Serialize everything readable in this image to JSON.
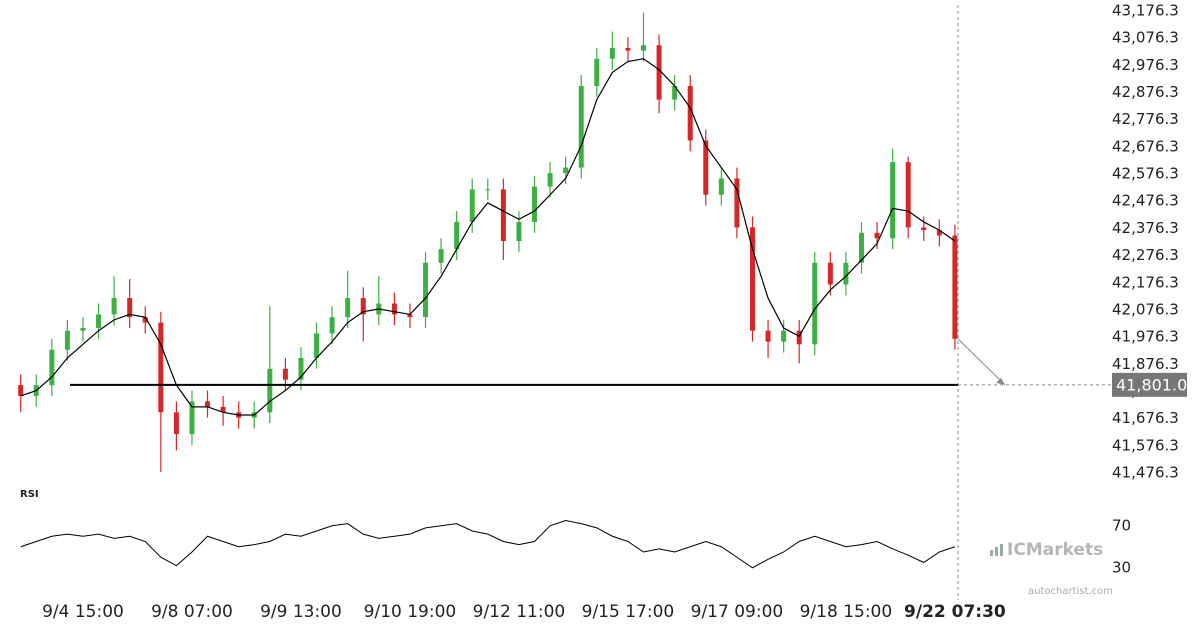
{
  "chart_data": {
    "type": "candlestick",
    "categories": [
      null,
      null,
      null,
      null,
      "9/4 15:00",
      null,
      null,
      null,
      null,
      null,
      null,
      "9/8 07:00",
      null,
      null,
      null,
      null,
      null,
      null,
      "9/9 13:00",
      null,
      null,
      null,
      null,
      null,
      null,
      "9/10 19:00",
      null,
      null,
      null,
      null,
      null,
      null,
      "9/12 11:00",
      null,
      null,
      null,
      null,
      null,
      null,
      "9/15 17:00",
      null,
      null,
      null,
      null,
      null,
      null,
      "9/17 09:00",
      null,
      null,
      null,
      null,
      null,
      null,
      "9/18 15:00",
      null,
      null,
      null,
      null,
      null,
      null,
      "9/22 07:30"
    ],
    "open": [
      41800,
      41760,
      41800,
      41930,
      42000,
      42010,
      42060,
      42120,
      42050,
      42030,
      41700,
      41620,
      41740,
      41720,
      41700,
      41680,
      41700,
      41860,
      41820,
      41900,
      41990,
      42050,
      42120,
      42060,
      42100,
      42060,
      42050,
      42250,
      42300,
      42400,
      42520,
      42520,
      42330,
      42400,
      42530,
      42580,
      42600,
      42900,
      43000,
      43040,
      43030,
      43050,
      42850,
      42900,
      42700,
      42500,
      42560,
      42380,
      42000,
      41960,
      42000,
      41950,
      42250,
      42170,
      42250,
      42360,
      42340,
      42620,
      42380,
      42370,
      42350
    ],
    "high": [
      41840,
      41840,
      41970,
      42040,
      42050,
      42100,
      42200,
      42190,
      42090,
      42070,
      41740,
      41780,
      41780,
      41760,
      41740,
      41740,
      42090,
      41900,
      41940,
      42030,
      42090,
      42220,
      42160,
      42200,
      42140,
      42100,
      42290,
      42340,
      42440,
      42560,
      42560,
      42560,
      42440,
      42570,
      42620,
      42640,
      42940,
      43040,
      43100,
      43080,
      43170,
      43090,
      42940,
      42940,
      42740,
      42600,
      42600,
      42420,
      42040,
      42040,
      42040,
      42290,
      42290,
      42290,
      42400,
      42400,
      42670,
      42640,
      42420,
      42410,
      42390
    ],
    "low": [
      41700,
      41720,
      41760,
      41890,
      41960,
      41970,
      42020,
      42010,
      41990,
      41480,
      41560,
      41580,
      41680,
      41650,
      41640,
      41640,
      41660,
      41780,
      41780,
      41860,
      41950,
      42010,
      41960,
      42020,
      42020,
      42010,
      42010,
      42210,
      42260,
      42360,
      42480,
      42260,
      42290,
      42360,
      42490,
      42540,
      42560,
      42860,
      42960,
      42990,
      42990,
      42800,
      42810,
      42660,
      42460,
      42460,
      42340,
      41960,
      41900,
      41920,
      41880,
      41910,
      42130,
      42130,
      42210,
      42300,
      42300,
      42340,
      42330,
      42310,
      41930
    ],
    "close": [
      41760,
      41800,
      41930,
      42000,
      42010,
      42060,
      42120,
      42050,
      42030,
      41700,
      41620,
      41740,
      41720,
      41700,
      41680,
      41700,
      41860,
      41820,
      41900,
      41990,
      42050,
      42120,
      42060,
      42100,
      42060,
      42050,
      42250,
      42300,
      42400,
      42520,
      42520,
      42330,
      42400,
      42530,
      42580,
      42600,
      42900,
      43000,
      43040,
      43030,
      43050,
      42850,
      42900,
      42700,
      42500,
      42560,
      42380,
      42000,
      41960,
      42000,
      41950,
      42250,
      42170,
      42250,
      42360,
      42340,
      42620,
      42380,
      42370,
      42350,
      41970
    ],
    "up_color": "#3cb043",
    "down_color": "#d62728",
    "ma": {
      "color": "#000000",
      "values": [
        41760,
        41780,
        41830,
        41900,
        41950,
        42000,
        42040,
        42060,
        42050,
        41950,
        41800,
        41720,
        41720,
        41700,
        41690,
        41690,
        41740,
        41780,
        41830,
        41900,
        41960,
        42030,
        42070,
        42080,
        42070,
        42060,
        42120,
        42200,
        42300,
        42400,
        42470,
        42440,
        42410,
        42440,
        42500,
        42560,
        42680,
        42850,
        42950,
        42990,
        43000,
        42960,
        42900,
        42820,
        42680,
        42600,
        42520,
        42300,
        42120,
        42010,
        41980,
        42080,
        42150,
        42200,
        42260,
        42320,
        42450,
        42440,
        42400,
        42370,
        42330
      ]
    },
    "ylim": [
      41440,
      43216.3
    ],
    "yticks": [
      {
        "value": 41476.3,
        "label": "41,476.3"
      },
      {
        "value": 41576.3,
        "label": "41,576.3"
      },
      {
        "value": 41676.3,
        "label": "41,676.3"
      },
      {
        "value": 41776.3,
        "label": "41,776.3"
      },
      {
        "value": 41876.3,
        "label": "41,876.3"
      },
      {
        "value": 41976.3,
        "label": "41,976.3"
      },
      {
        "value": 42076.3,
        "label": "42,076.3"
      },
      {
        "value": 42176.3,
        "label": "42,176.3"
      },
      {
        "value": 42276.3,
        "label": "42,276.3"
      },
      {
        "value": 42376.3,
        "label": "42,376.3"
      },
      {
        "value": 42476.3,
        "label": "42,476.3"
      },
      {
        "value": 42576.3,
        "label": "42,576.3"
      },
      {
        "value": 42676.3,
        "label": "42,676.3"
      },
      {
        "value": 42776.3,
        "label": "42,776.3"
      },
      {
        "value": 42876.3,
        "label": "42,876.3"
      },
      {
        "value": 42976.3,
        "label": "42,976.3"
      },
      {
        "value": 43076.3,
        "label": "43,076.3"
      },
      {
        "value": 43176.3,
        "label": "43,176.3"
      }
    ],
    "level": {
      "value": 41801,
      "label": "41,801.0"
    },
    "indicator": {
      "title": "RSI",
      "color": "#000000",
      "values": [
        50,
        55,
        60,
        62,
        60,
        62,
        58,
        60,
        55,
        40,
        32,
        45,
        60,
        55,
        50,
        52,
        55,
        62,
        60,
        65,
        70,
        72,
        62,
        58,
        60,
        62,
        68,
        70,
        72,
        65,
        62,
        55,
        52,
        55,
        70,
        75,
        72,
        68,
        60,
        55,
        45,
        48,
        45,
        50,
        55,
        50,
        40,
        30,
        38,
        45,
        55,
        60,
        55,
        50,
        52,
        55,
        48,
        42,
        35,
        45,
        50
      ],
      "ylim": [
        25,
        85
      ],
      "yticks": [
        30,
        70
      ]
    }
  },
  "branding": {
    "logo": "ICMarkets",
    "site": "autochartist.com"
  }
}
